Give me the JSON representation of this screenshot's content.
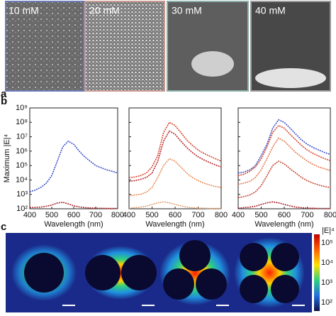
{
  "panel_a": {
    "label": "a",
    "images": [
      "10 mM",
      "20 mM",
      "30 mM",
      "40 mM"
    ]
  },
  "panel_b_label": "b",
  "chart_data": [
    {
      "type": "line",
      "ylabel": "Maximum |E|⁴",
      "xlabel": "Wavelength (nm)",
      "log_y": true,
      "x": [
        400,
        425,
        450,
        475,
        500,
        525,
        550,
        575,
        600,
        625,
        650,
        675,
        700,
        725,
        750,
        775,
        800
      ],
      "xlim": [
        400,
        800
      ],
      "xticks": [
        400,
        500,
        600,
        700,
        800
      ],
      "ylim": [
        100,
        1000000000
      ],
      "yticks": [
        {
          "value": 100,
          "label": "10²"
        },
        {
          "value": 1000,
          "label": "10³"
        },
        {
          "value": 10000,
          "label": "10⁴"
        },
        {
          "value": 100000,
          "label": "10⁵"
        },
        {
          "value": 1000000,
          "label": "10⁶"
        },
        {
          "value": 10000000,
          "label": "10⁷"
        },
        {
          "value": 100000000,
          "label": "10⁸"
        },
        {
          "value": 1000000000,
          "label": "10⁹"
        }
      ],
      "series": [
        {
          "color": "#3b4fc9",
          "values": [
            1500,
            2000,
            3000,
            6000,
            20000,
            200000,
            2000000,
            5000000,
            3000000,
            1000000,
            400000,
            200000,
            100000,
            70000,
            50000,
            40000,
            30000
          ]
        },
        {
          "color": "#a8242a",
          "values": [
            120,
            125,
            130,
            150,
            180,
            250,
            280,
            220,
            160,
            135,
            120,
            115,
            110,
            108,
            106,
            105,
            105
          ]
        }
      ]
    },
    {
      "type": "line",
      "xlabel": "Wavelength (nm)",
      "log_y": true,
      "x": [
        400,
        425,
        450,
        475,
        500,
        525,
        550,
        575,
        600,
        625,
        650,
        675,
        700,
        725,
        750,
        775,
        800
      ],
      "xlim": [
        400,
        800
      ],
      "xticks": [
        400,
        500,
        600,
        700,
        800
      ],
      "ylim": [
        100,
        1000000000
      ],
      "yticks": [
        100,
        1000,
        10000,
        100000,
        1000000,
        10000000,
        100000000,
        1000000000
      ],
      "series": [
        {
          "color": "#d8452c",
          "values": [
            15000,
            16000,
            20000,
            30000,
            80000,
            500000,
            20000000,
            100000000,
            60000000,
            20000000,
            6000000,
            2500000,
            1200000,
            700000,
            450000,
            300000,
            200000
          ]
        },
        {
          "color": "#b8242a",
          "values": [
            8000,
            9000,
            11000,
            15000,
            30000,
            200000,
            5000000,
            25000000,
            15000000,
            5000000,
            1800000,
            800000,
            400000,
            250000,
            160000,
            110000,
            80000
          ]
        },
        {
          "color": "#e88a55",
          "values": [
            800,
            900,
            1000,
            1400,
            3000,
            15000,
            100000,
            300000,
            200000,
            80000,
            30000,
            15000,
            9000,
            6000,
            4500,
            3500,
            3000
          ]
        },
        {
          "color": "#e0a070",
          "values": [
            110,
            120,
            130,
            150,
            200,
            260,
            300,
            260,
            200,
            160,
            130,
            120,
            110,
            110,
            105,
            105,
            105
          ]
        }
      ]
    },
    {
      "type": "line",
      "xlabel": "Wavelength (nm)",
      "log_y": true,
      "x": [
        400,
        425,
        450,
        475,
        500,
        525,
        550,
        575,
        600,
        625,
        650,
        675,
        700,
        725,
        750,
        775,
        800
      ],
      "xlim": [
        400,
        800
      ],
      "xticks": [
        400,
        500,
        600,
        700,
        800
      ],
      "ylim": [
        100,
        1000000000
      ],
      "yticks": [
        100,
        1000,
        10000,
        100000,
        1000000,
        10000000,
        100000000,
        1000000000
      ],
      "series": [
        {
          "color": "#3b4fc9",
          "values": [
            30000,
            35000,
            50000,
            100000,
            500000,
            3000000,
            40000000,
            150000000,
            100000000,
            40000000,
            15000000,
            6000000,
            3000000,
            1800000,
            1200000,
            800000,
            600000
          ]
        },
        {
          "color": "#d8452c",
          "values": [
            20000,
            25000,
            40000,
            80000,
            300000,
            2000000,
            20000000,
            60000000,
            40000000,
            15000000,
            6000000,
            2500000,
            1200000,
            700000,
            450000,
            300000,
            220000
          ]
        },
        {
          "color": "#e8764a",
          "values": [
            5000,
            6000,
            8000,
            15000,
            50000,
            300000,
            2000000,
            8000000,
            5000000,
            2000000,
            800000,
            400000,
            200000,
            120000,
            80000,
            60000,
            45000
          ]
        },
        {
          "color": "#c8402e",
          "values": [
            600,
            700,
            900,
            1500,
            4000,
            20000,
            100000,
            200000,
            130000,
            60000,
            30000,
            15000,
            9000,
            6000,
            4500,
            3500,
            3000
          ]
        },
        {
          "color": "#a8242a",
          "values": [
            110,
            120,
            130,
            150,
            200,
            260,
            300,
            260,
            200,
            160,
            130,
            120,
            110,
            110,
            105,
            105,
            105
          ]
        }
      ]
    }
  ],
  "panel_c": {
    "label": "c",
    "colorbar_title": "|E|⁴",
    "colorbar_labels": [
      "10⁵",
      "10⁴",
      "10³",
      "10²"
    ]
  }
}
